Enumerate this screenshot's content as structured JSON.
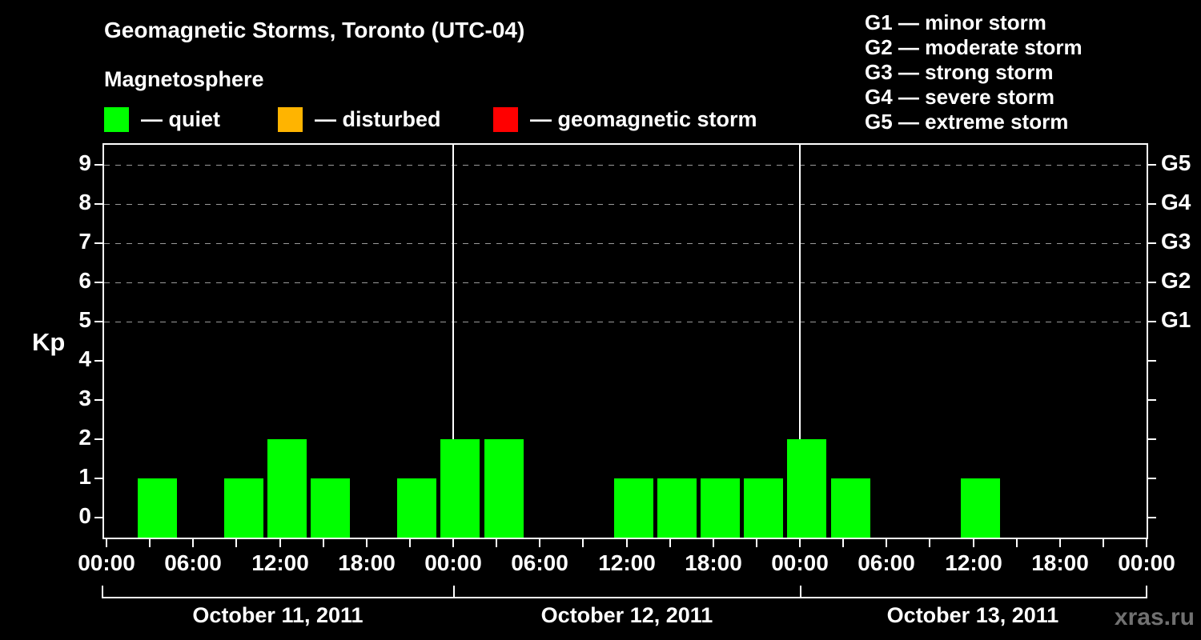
{
  "title": "Geomagnetic Storms, Toronto (UTC-04)",
  "watermark": "xras.ru",
  "legend": {
    "heading": "Magnetosphere",
    "items": [
      {
        "name": "quiet",
        "label": "— quiet",
        "color": "#00ff00"
      },
      {
        "name": "disturbed",
        "label": "— disturbed",
        "color": "#ffb400"
      },
      {
        "name": "geomagnetic-storm",
        "label": "— geomagnetic storm",
        "color": "#ff0000"
      }
    ]
  },
  "g_scale_legend": [
    "G1 — minor storm",
    "G2 — moderate storm",
    "G3 — strong storm",
    "G4 — severe storm",
    "G5 — extreme storm"
  ],
  "chart_data": {
    "type": "bar",
    "title": "Geomagnetic Storms, Toronto (UTC-04)",
    "ylabel": "Kp",
    "ylim": [
      -0.5,
      9.5
    ],
    "yticks": [
      0,
      1,
      2,
      3,
      4,
      5,
      6,
      7,
      8,
      9
    ],
    "grid_levels_kp": [
      5,
      6,
      7,
      8,
      9
    ],
    "right_axis_labels": [
      {
        "kp": 9,
        "label": "G5"
      },
      {
        "kp": 8,
        "label": "G4"
      },
      {
        "kp": 7,
        "label": "G3"
      },
      {
        "kp": 6,
        "label": "G2"
      },
      {
        "kp": 5,
        "label": "G1"
      }
    ],
    "bar_color": "#00ff00",
    "x_total_hours": 72,
    "x_minor_tick_hours": 3,
    "x_major_tick_hours": 6,
    "x_major_labels": [
      "00:00",
      "06:00",
      "12:00",
      "18:00",
      "00:00",
      "06:00",
      "12:00",
      "18:00",
      "00:00",
      "06:00",
      "12:00",
      "18:00",
      "00:00"
    ],
    "slot_start_offset_hours": 2,
    "slot_duration_hours": 3,
    "days": [
      {
        "date": "October 11, 2011",
        "kp_values": [
          1,
          0,
          1,
          2,
          1,
          0,
          1,
          2
        ]
      },
      {
        "date": "October 12, 2011",
        "kp_values": [
          2,
          0,
          0,
          1,
          1,
          1,
          1,
          2
        ]
      },
      {
        "date": "October 13, 2011",
        "kp_values": [
          1,
          0,
          0,
          1,
          0,
          0,
          0,
          0
        ]
      }
    ]
  }
}
